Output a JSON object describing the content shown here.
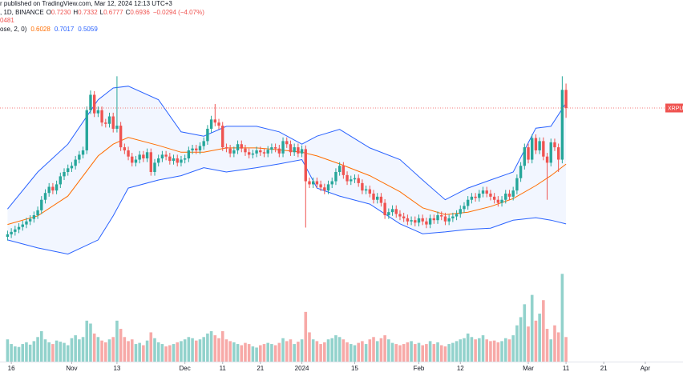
{
  "header": {
    "published": "r published on TradingView.com, Mar 12, 2024 12:13 UTC+3",
    "symbol": ", 1D, BINANCE",
    "ohlc": [
      {
        "label": "O",
        "value": "0.7230"
      },
      {
        "label": "H",
        "value": "0.7332"
      },
      {
        "label": "L",
        "value": "0.6777"
      },
      {
        "label": "C",
        "value": "0.6936"
      }
    ],
    "change": "−0.0294 (−4.07%)",
    "volume_text": "0481",
    "bb_settings": "ose, 2, 0)",
    "bb_values": [
      "0.6028",
      "0.7017",
      "0.5059"
    ]
  },
  "chart_data": {
    "type": "candlestick",
    "price_label": "XRPUS",
    "up_color": "#26a69a",
    "down_color": "#ef5350",
    "xlim": [
      "2023-10-13",
      "2024-04-11"
    ],
    "ylim": [
      0.441,
      0.8685
    ],
    "volume_ylim": [
      0,
      1600
    ],
    "xticks": [
      {
        "value": "2023-10-16",
        "label": "16"
      },
      {
        "value": "2023-11-01",
        "label": "Nov"
      },
      {
        "value": "2023-11-13",
        "label": "13"
      },
      {
        "value": "2023-12-01",
        "label": "Dec"
      },
      {
        "value": "2023-12-11",
        "label": "11"
      },
      {
        "value": "2023-12-21",
        "label": "21"
      },
      {
        "value": "2024-01-01",
        "label": "2024"
      },
      {
        "value": "2024-01-15",
        "label": "15"
      },
      {
        "value": "2024-02-01",
        "label": "Feb"
      },
      {
        "value": "2024-02-12",
        "label": "12"
      },
      {
        "value": "2024-03-01",
        "label": "Mar"
      },
      {
        "value": "2024-03-11",
        "label": "11"
      },
      {
        "value": "2024-03-21",
        "label": "21"
      },
      {
        "value": "2024-04-01",
        "label": "Apr"
      }
    ],
    "x": [
      "2023-10-15",
      "2023-10-16",
      "2023-10-17",
      "2023-10-18",
      "2023-10-19",
      "2023-10-20",
      "2023-10-21",
      "2023-10-22",
      "2023-10-23",
      "2023-10-24",
      "2023-10-25",
      "2023-10-26",
      "2023-10-27",
      "2023-10-28",
      "2023-10-29",
      "2023-10-30",
      "2023-10-31",
      "2023-11-01",
      "2023-11-02",
      "2023-11-03",
      "2023-11-04",
      "2023-11-05",
      "2023-11-06",
      "2023-11-07",
      "2023-11-08",
      "2023-11-09",
      "2023-11-10",
      "2023-11-11",
      "2023-11-12",
      "2023-11-13",
      "2023-11-14",
      "2023-11-15",
      "2023-11-16",
      "2023-11-17",
      "2023-11-18",
      "2023-11-19",
      "2023-11-20",
      "2023-11-21",
      "2023-11-22",
      "2023-11-23",
      "2023-11-24",
      "2023-11-25",
      "2023-11-26",
      "2023-11-27",
      "2023-11-28",
      "2023-11-29",
      "2023-11-30",
      "2023-12-01",
      "2023-12-02",
      "2023-12-03",
      "2023-12-04",
      "2023-12-05",
      "2023-12-06",
      "2023-12-07",
      "2023-12-08",
      "2023-12-09",
      "2023-12-10",
      "2023-12-11",
      "2023-12-12",
      "2023-12-13",
      "2023-12-14",
      "2023-12-15",
      "2023-12-16",
      "2023-12-17",
      "2023-12-18",
      "2023-12-19",
      "2023-12-20",
      "2023-12-21",
      "2023-12-22",
      "2023-12-23",
      "2023-12-24",
      "2023-12-25",
      "2023-12-26",
      "2023-12-27",
      "2023-12-28",
      "2023-12-29",
      "2023-12-30",
      "2023-12-31",
      "2024-01-01",
      "2024-01-02",
      "2024-01-03",
      "2024-01-04",
      "2024-01-05",
      "2024-01-06",
      "2024-01-07",
      "2024-01-08",
      "2024-01-09",
      "2024-01-10",
      "2024-01-11",
      "2024-01-12",
      "2024-01-13",
      "2024-01-14",
      "2024-01-15",
      "2024-01-16",
      "2024-01-17",
      "2024-01-18",
      "2024-01-19",
      "2024-01-20",
      "2024-01-21",
      "2024-01-22",
      "2024-01-23",
      "2024-01-24",
      "2024-01-25",
      "2024-01-26",
      "2024-01-27",
      "2024-01-28",
      "2024-01-29",
      "2024-01-30",
      "2024-01-31",
      "2024-02-01",
      "2024-02-02",
      "2024-02-03",
      "2024-02-04",
      "2024-02-05",
      "2024-02-06",
      "2024-02-07",
      "2024-02-08",
      "2024-02-09",
      "2024-02-10",
      "2024-02-11",
      "2024-02-12",
      "2024-02-13",
      "2024-02-14",
      "2024-02-15",
      "2024-02-16",
      "2024-02-17",
      "2024-02-18",
      "2024-02-19",
      "2024-02-20",
      "2024-02-21",
      "2024-02-22",
      "2024-02-23",
      "2024-02-24",
      "2024-02-25",
      "2024-02-26",
      "2024-02-27",
      "2024-02-28",
      "2024-02-29",
      "2024-03-01",
      "2024-03-02",
      "2024-03-03",
      "2024-03-04",
      "2024-03-05",
      "2024-03-06",
      "2024-03-07",
      "2024-03-08",
      "2024-03-09",
      "2024-03-10",
      "2024-03-11"
    ],
    "candles": [
      [
        0.485,
        0.495,
        0.479,
        0.489
      ],
      [
        0.489,
        0.499,
        0.483,
        0.493
      ],
      [
        0.493,
        0.503,
        0.487,
        0.497
      ],
      [
        0.497,
        0.507,
        0.491,
        0.501
      ],
      [
        0.501,
        0.511,
        0.495,
        0.505
      ],
      [
        0.505,
        0.516,
        0.499,
        0.51
      ],
      [
        0.51,
        0.52,
        0.504,
        0.514
      ],
      [
        0.514,
        0.526,
        0.508,
        0.52
      ],
      [
        0.52,
        0.534,
        0.514,
        0.528
      ],
      [
        0.528,
        0.551,
        0.522,
        0.545
      ],
      [
        0.545,
        0.562,
        0.539,
        0.556
      ],
      [
        0.556,
        0.572,
        0.55,
        0.566
      ],
      [
        0.566,
        0.572,
        0.554,
        0.56
      ],
      [
        0.56,
        0.576,
        0.554,
        0.57
      ],
      [
        0.57,
        0.589,
        0.564,
        0.583
      ],
      [
        0.583,
        0.596,
        0.577,
        0.59
      ],
      [
        0.59,
        0.602,
        0.584,
        0.596
      ],
      [
        0.596,
        0.606,
        0.59,
        0.6
      ],
      [
        0.6,
        0.616,
        0.594,
        0.61
      ],
      [
        0.61,
        0.624,
        0.604,
        0.618
      ],
      [
        0.618,
        0.631,
        0.612,
        0.625
      ],
      [
        0.625,
        0.696,
        0.619,
        0.69
      ],
      [
        0.69,
        0.722,
        0.684,
        0.715
      ],
      [
        0.715,
        0.721,
        0.679,
        0.685
      ],
      [
        0.685,
        0.696,
        0.679,
        0.69
      ],
      [
        0.69,
        0.696,
        0.664,
        0.67
      ],
      [
        0.67,
        0.676,
        0.662,
        0.668
      ],
      [
        0.668,
        0.686,
        0.662,
        0.68
      ],
      [
        0.68,
        0.686,
        0.654,
        0.66
      ],
      [
        0.66,
        0.745,
        0.654,
        0.665
      ],
      [
        0.665,
        0.671,
        0.624,
        0.63
      ],
      [
        0.63,
        0.636,
        0.619,
        0.625
      ],
      [
        0.625,
        0.631,
        0.609,
        0.615
      ],
      [
        0.615,
        0.621,
        0.599,
        0.605
      ],
      [
        0.605,
        0.616,
        0.599,
        0.61
      ],
      [
        0.61,
        0.624,
        0.604,
        0.618
      ],
      [
        0.618,
        0.624,
        0.606,
        0.612
      ],
      [
        0.612,
        0.628,
        0.606,
        0.622
      ],
      [
        0.622,
        0.628,
        0.584,
        0.59
      ],
      [
        0.59,
        0.611,
        0.584,
        0.605
      ],
      [
        0.605,
        0.618,
        0.599,
        0.612
      ],
      [
        0.612,
        0.624,
        0.606,
        0.618
      ],
      [
        0.618,
        0.624,
        0.609,
        0.615
      ],
      [
        0.615,
        0.621,
        0.602,
        0.608
      ],
      [
        0.608,
        0.618,
        0.602,
        0.612
      ],
      [
        0.612,
        0.618,
        0.599,
        0.605
      ],
      [
        0.605,
        0.616,
        0.599,
        0.61
      ],
      [
        0.61,
        0.618,
        0.604,
        0.612
      ],
      [
        0.612,
        0.631,
        0.606,
        0.625
      ],
      [
        0.625,
        0.634,
        0.619,
        0.628
      ],
      [
        0.628,
        0.634,
        0.619,
        0.625
      ],
      [
        0.625,
        0.638,
        0.619,
        0.632
      ],
      [
        0.632,
        0.646,
        0.626,
        0.64
      ],
      [
        0.64,
        0.666,
        0.634,
        0.66
      ],
      [
        0.66,
        0.681,
        0.654,
        0.675
      ],
      [
        0.675,
        0.7,
        0.664,
        0.67
      ],
      [
        0.67,
        0.676,
        0.659,
        0.665
      ],
      [
        0.665,
        0.671,
        0.624,
        0.63
      ],
      [
        0.63,
        0.636,
        0.622,
        0.628
      ],
      [
        0.628,
        0.634,
        0.614,
        0.62
      ],
      [
        0.62,
        0.631,
        0.614,
        0.625
      ],
      [
        0.625,
        0.641,
        0.619,
        0.635
      ],
      [
        0.635,
        0.641,
        0.622,
        0.628
      ],
      [
        0.628,
        0.634,
        0.616,
        0.622
      ],
      [
        0.622,
        0.628,
        0.612,
        0.618
      ],
      [
        0.618,
        0.626,
        0.612,
        0.62
      ],
      [
        0.62,
        0.631,
        0.614,
        0.625
      ],
      [
        0.625,
        0.631,
        0.616,
        0.622
      ],
      [
        0.622,
        0.628,
        0.614,
        0.62
      ],
      [
        0.62,
        0.632,
        0.614,
        0.626
      ],
      [
        0.626,
        0.636,
        0.62,
        0.63
      ],
      [
        0.63,
        0.636,
        0.622,
        0.628
      ],
      [
        0.628,
        0.634,
        0.614,
        0.62
      ],
      [
        0.62,
        0.646,
        0.614,
        0.64
      ],
      [
        0.64,
        0.646,
        0.629,
        0.635
      ],
      [
        0.635,
        0.641,
        0.616,
        0.622
      ],
      [
        0.622,
        0.636,
        0.616,
        0.63
      ],
      [
        0.63,
        0.636,
        0.614,
        0.62
      ],
      [
        0.62,
        0.633,
        0.614,
        0.627
      ],
      [
        0.627,
        0.633,
        0.5,
        0.575
      ],
      [
        0.575,
        0.581,
        0.564,
        0.57
      ],
      [
        0.57,
        0.581,
        0.564,
        0.575
      ],
      [
        0.575,
        0.581,
        0.564,
        0.57
      ],
      [
        0.57,
        0.576,
        0.559,
        0.565
      ],
      [
        0.565,
        0.571,
        0.554,
        0.56
      ],
      [
        0.56,
        0.576,
        0.554,
        0.57
      ],
      [
        0.57,
        0.581,
        0.564,
        0.575
      ],
      [
        0.575,
        0.596,
        0.569,
        0.59
      ],
      [
        0.59,
        0.606,
        0.584,
        0.6
      ],
      [
        0.6,
        0.606,
        0.579,
        0.585
      ],
      [
        0.585,
        0.591,
        0.569,
        0.575
      ],
      [
        0.575,
        0.584,
        0.569,
        0.578
      ],
      [
        0.578,
        0.586,
        0.572,
        0.58
      ],
      [
        0.58,
        0.586,
        0.566,
        0.572
      ],
      [
        0.572,
        0.578,
        0.554,
        0.56
      ],
      [
        0.56,
        0.568,
        0.554,
        0.562
      ],
      [
        0.562,
        0.568,
        0.549,
        0.555
      ],
      [
        0.555,
        0.561,
        0.539,
        0.545
      ],
      [
        0.545,
        0.556,
        0.539,
        0.55
      ],
      [
        0.55,
        0.556,
        0.534,
        0.54
      ],
      [
        0.54,
        0.546,
        0.514,
        0.52
      ],
      [
        0.52,
        0.531,
        0.514,
        0.525
      ],
      [
        0.525,
        0.536,
        0.519,
        0.53
      ],
      [
        0.53,
        0.536,
        0.516,
        0.522
      ],
      [
        0.522,
        0.528,
        0.512,
        0.518
      ],
      [
        0.518,
        0.524,
        0.509,
        0.515
      ],
      [
        0.515,
        0.521,
        0.504,
        0.51
      ],
      [
        0.51,
        0.518,
        0.504,
        0.512
      ],
      [
        0.512,
        0.518,
        0.502,
        0.508
      ],
      [
        0.508,
        0.521,
        0.502,
        0.515
      ],
      [
        0.515,
        0.521,
        0.504,
        0.51
      ],
      [
        0.51,
        0.516,
        0.499,
        0.505
      ],
      [
        0.505,
        0.521,
        0.499,
        0.515
      ],
      [
        0.515,
        0.521,
        0.506,
        0.512
      ],
      [
        0.512,
        0.526,
        0.506,
        0.52
      ],
      [
        0.52,
        0.526,
        0.512,
        0.518
      ],
      [
        0.518,
        0.524,
        0.504,
        0.51
      ],
      [
        0.51,
        0.521,
        0.504,
        0.515
      ],
      [
        0.515,
        0.524,
        0.509,
        0.518
      ],
      [
        0.518,
        0.528,
        0.512,
        0.522
      ],
      [
        0.522,
        0.536,
        0.516,
        0.53
      ],
      [
        0.53,
        0.541,
        0.524,
        0.535
      ],
      [
        0.535,
        0.551,
        0.529,
        0.545
      ],
      [
        0.545,
        0.556,
        0.539,
        0.55
      ],
      [
        0.55,
        0.556,
        0.542,
        0.548
      ],
      [
        0.548,
        0.561,
        0.542,
        0.555
      ],
      [
        0.555,
        0.566,
        0.549,
        0.56
      ],
      [
        0.56,
        0.566,
        0.549,
        0.555
      ],
      [
        0.555,
        0.561,
        0.544,
        0.55
      ],
      [
        0.55,
        0.556,
        0.539,
        0.545
      ],
      [
        0.545,
        0.551,
        0.534,
        0.54
      ],
      [
        0.54,
        0.551,
        0.534,
        0.545
      ],
      [
        0.545,
        0.561,
        0.539,
        0.555
      ],
      [
        0.555,
        0.561,
        0.544,
        0.55
      ],
      [
        0.55,
        0.566,
        0.544,
        0.56
      ],
      [
        0.56,
        0.586,
        0.554,
        0.58
      ],
      [
        0.58,
        0.606,
        0.574,
        0.6
      ],
      [
        0.6,
        0.636,
        0.594,
        0.63
      ],
      [
        0.63,
        0.636,
        0.604,
        0.61
      ],
      [
        0.61,
        0.651,
        0.604,
        0.645
      ],
      [
        0.645,
        0.651,
        0.619,
        0.625
      ],
      [
        0.625,
        0.646,
        0.619,
        0.64
      ],
      [
        0.64,
        0.646,
        0.609,
        0.615
      ],
      [
        0.615,
        0.621,
        0.545,
        0.605
      ],
      [
        0.605,
        0.644,
        0.599,
        0.638
      ],
      [
        0.638,
        0.644,
        0.624,
        0.63
      ],
      [
        0.63,
        0.636,
        0.59,
        0.61
      ],
      [
        0.61,
        0.745,
        0.604,
        0.723
      ],
      [
        0.723,
        0.7332,
        0.6777,
        0.6936
      ]
    ],
    "volume": [
      380,
      300,
      260,
      250,
      300,
      330,
      290,
      350,
      420,
      520,
      380,
      330,
      300,
      360,
      340,
      320,
      280,
      400,
      450,
      380,
      420,
      700,
      650,
      480,
      420,
      360,
      330,
      380,
      420,
      700,
      560,
      420,
      350,
      380,
      300,
      320,
      280,
      360,
      500,
      400,
      330,
      300,
      260,
      280,
      300,
      330,
      350,
      380,
      420,
      400,
      360,
      380,
      420,
      480,
      520,
      450,
      400,
      520,
      380,
      350,
      330,
      300,
      280,
      320,
      300,
      260,
      240,
      280,
      300,
      320,
      300,
      280,
      320,
      400,
      350,
      380,
      300,
      340,
      380,
      850,
      500,
      380,
      350,
      300,
      330,
      380,
      400,
      450,
      420,
      380,
      330,
      300,
      280,
      320,
      350,
      300,
      380,
      420,
      350,
      400,
      450,
      380,
      320,
      300,
      280,
      300,
      330,
      350,
      300,
      320,
      280,
      300,
      350,
      300,
      330,
      280,
      260,
      300,
      320,
      350,
      380,
      400,
      480,
      420,
      380,
      400,
      450,
      380,
      350,
      360,
      330,
      350,
      400,
      380,
      450,
      620,
      760,
      980,
      600,
      1140,
      700,
      820,
      1050,
      560,
      380,
      620,
      500,
      1500,
      420
    ],
    "bollinger": {
      "band_color": "#2962ff",
      "middle_color": "#ff6d00",
      "x": [
        "2023-10-15",
        "2023-10-23",
        "2023-10-31",
        "2023-11-08",
        "2023-11-12",
        "2023-11-16",
        "2023-11-24",
        "2023-11-30",
        "2023-12-06",
        "2023-12-12",
        "2023-12-20",
        "2023-12-26",
        "2024-01-01",
        "2024-01-05",
        "2024-01-11",
        "2024-01-19",
        "2024-01-27",
        "2024-02-02",
        "2024-02-08",
        "2024-02-14",
        "2024-02-20",
        "2024-02-26",
        "2024-03-03",
        "2024-03-07",
        "2024-03-11"
      ],
      "upper": [
        0.53,
        0.59,
        0.635,
        0.707,
        0.726,
        0.729,
        0.707,
        0.655,
        0.648,
        0.664,
        0.664,
        0.655,
        0.635,
        0.648,
        0.659,
        0.629,
        0.61,
        0.577,
        0.545,
        0.564,
        0.577,
        0.59,
        0.661,
        0.664,
        0.7017
      ],
      "middle": [
        0.505,
        0.519,
        0.551,
        0.616,
        0.635,
        0.646,
        0.633,
        0.622,
        0.622,
        0.629,
        0.629,
        0.626,
        0.622,
        0.616,
        0.603,
        0.584,
        0.558,
        0.532,
        0.521,
        0.525,
        0.534,
        0.547,
        0.568,
        0.584,
        0.6028
      ],
      "lower": [
        0.48,
        0.467,
        0.457,
        0.48,
        0.519,
        0.564,
        0.577,
        0.584,
        0.597,
        0.59,
        0.597,
        0.603,
        0.61,
        0.564,
        0.551,
        0.538,
        0.506,
        0.49,
        0.493,
        0.497,
        0.499,
        0.512,
        0.516,
        0.512,
        0.5059
      ]
    }
  }
}
